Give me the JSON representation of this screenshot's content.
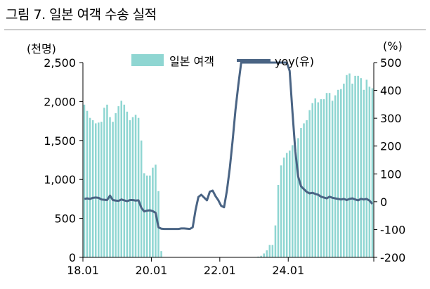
{
  "title": "그림 7. 일본 여객 수송 실적",
  "chart_data": {
    "type": "bar+line",
    "title": "그림 7. 일본 여객 수송 실적",
    "left_unit": "(천명)",
    "right_unit": "(%)",
    "legend_position": "top",
    "x_ticks": [
      "18.01",
      "20.01",
      "22.01",
      "24.01"
    ],
    "y_left_ticks": [
      "0",
      "500",
      "1,000",
      "1,500",
      "2,000",
      "2,500"
    ],
    "y_right_ticks": [
      "-200",
      "-100",
      "0",
      "100",
      "200",
      "300",
      "400",
      "500"
    ],
    "y_left_lim": [
      0,
      2500
    ],
    "y_right_lim": [
      -200,
      500
    ],
    "x_start": "2018-01",
    "x_end": "2025-07",
    "series": [
      {
        "name": "일본 여객",
        "axis": "left",
        "color": "#8fd6d2",
        "values": [
          1960,
          1880,
          1790,
          1760,
          1720,
          1730,
          1740,
          1920,
          1960,
          1800,
          1740,
          1850,
          1940,
          2010,
          1960,
          1870,
          1760,
          1800,
          1830,
          1790,
          1500,
          1080,
          1050,
          1050,
          1150,
          1190,
          850,
          80,
          0,
          0,
          0,
          0,
          0,
          0,
          0,
          0,
          0,
          0,
          0,
          0,
          0,
          0,
          0,
          0,
          0,
          0,
          0,
          0,
          0,
          0,
          0,
          0,
          0,
          0,
          0,
          0,
          0,
          0,
          0,
          0,
          0,
          10,
          20,
          50,
          90,
          160,
          160,
          410,
          930,
          1180,
          1280,
          1340,
          1370,
          1440,
          1390,
          1530,
          1660,
          1720,
          1760,
          1890,
          1980,
          2040,
          1990,
          2030,
          2030,
          2110,
          2110,
          2010,
          2080,
          2150,
          2160,
          2230,
          2340,
          2360,
          2230,
          2330,
          2330,
          2300,
          2150,
          2280,
          2190,
          2170
        ]
      },
      {
        "name": "yoy(유)",
        "axis": "right",
        "color": "#4a6484",
        "values": [
          10,
          12,
          10,
          14,
          15,
          14,
          8,
          7,
          6,
          22,
          6,
          4,
          3,
          8,
          5,
          2,
          6,
          6,
          4,
          5,
          -22,
          -35,
          -32,
          -31,
          -34,
          -40,
          -92,
          -97,
          -98,
          -98,
          -98,
          -98,
          -98,
          -98,
          -96,
          -96,
          -97,
          -98,
          -92,
          -30,
          17,
          25,
          15,
          5,
          36,
          40,
          20,
          5,
          -15,
          -20,
          40,
          120,
          220,
          330,
          420,
          500,
          500,
          500,
          500,
          500,
          500,
          500,
          500,
          500,
          500,
          500,
          500,
          500,
          500,
          500,
          500,
          500,
          470,
          320,
          180,
          90,
          55,
          45,
          35,
          30,
          32,
          28,
          25,
          18,
          15,
          12,
          18,
          14,
          12,
          10,
          8,
          10,
          6,
          10,
          12,
          8,
          5,
          10,
          8,
          10,
          4,
          -8
        ]
      }
    ]
  }
}
